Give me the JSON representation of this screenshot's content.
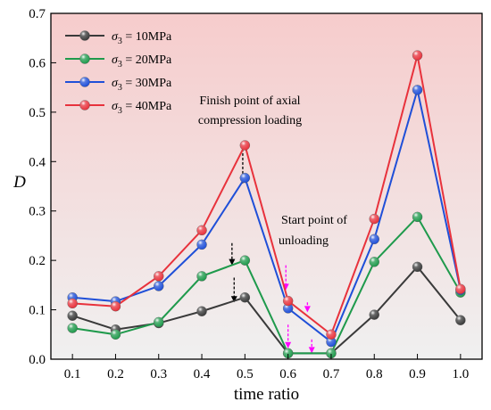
{
  "chart_data": {
    "type": "line",
    "xlabel": "time ratio",
    "ylabel": "D",
    "xlim": [
      0.05,
      1.05
    ],
    "ylim": [
      0,
      0.7
    ],
    "x_ticks": [
      "0.1",
      "0.2",
      "0.3",
      "0.4",
      "0.5",
      "0.6",
      "0.7",
      "0.8",
      "0.9",
      "1.0"
    ],
    "y_ticks": [
      "0.0",
      "0.1",
      "0.2",
      "0.3",
      "0.4",
      "0.5",
      "0.6",
      "0.7"
    ],
    "x": [
      0.1,
      0.2,
      0.3,
      0.4,
      0.5,
      0.6,
      0.7,
      0.8,
      0.9,
      1.0
    ],
    "legend_position": "top-left",
    "background": {
      "top_color": "#f6cccc",
      "bottom_color": "#f0f0f0"
    },
    "series": [
      {
        "sigma_symbol": "σ",
        "subscript": "3",
        "value_text": " = 10MPa",
        "color": "#3a3a3a",
        "values": [
          0.088,
          0.06,
          0.073,
          0.097,
          0.125,
          0.012,
          0.012,
          0.09,
          0.187,
          0.079
        ]
      },
      {
        "sigma_symbol": "σ",
        "subscript": "3",
        "value_text": " = 20MPa",
        "color": "#1f9a4c",
        "values": [
          0.063,
          0.05,
          0.075,
          0.168,
          0.2,
          0.012,
          0.012,
          0.197,
          0.288,
          0.135
        ]
      },
      {
        "sigma_symbol": "σ",
        "subscript": "3",
        "value_text": " = 30MPa",
        "color": "#1f4fd8",
        "values": [
          0.125,
          0.117,
          0.148,
          0.232,
          0.367,
          0.103,
          0.035,
          0.243,
          0.545,
          0.14
        ]
      },
      {
        "sigma_symbol": "σ",
        "subscript": "3",
        "value_text": " = 40MPa",
        "color": "#e8323c",
        "values": [
          0.113,
          0.107,
          0.168,
          0.261,
          0.433,
          0.118,
          0.05,
          0.284,
          0.615,
          0.142
        ]
      }
    ],
    "annotations": [
      {
        "lines": [
          "Finish point of axial",
          "compression loading"
        ]
      },
      {
        "lines": [
          "Start point of",
          "unloading"
        ]
      }
    ],
    "arrows": {
      "finish_color": "#000000",
      "start_color": "#ff00ff",
      "finish": [
        {
          "x": 0.47,
          "y_from": 0.235,
          "y_to": 0.19
        },
        {
          "x": 0.475,
          "y_from": 0.165,
          "y_to": 0.115
        },
        {
          "x": 0.495,
          "y_from": 0.435,
          "y_to": 0.355
        }
      ],
      "start": [
        {
          "x": 0.595,
          "y_from": 0.19,
          "y_to": 0.14
        },
        {
          "x": 0.6,
          "y_from": 0.07,
          "y_to": 0.022
        },
        {
          "x": 0.645,
          "y_from": 0.115,
          "y_to": 0.095
        },
        {
          "x": 0.655,
          "y_from": 0.04,
          "y_to": 0.012
        }
      ]
    }
  }
}
